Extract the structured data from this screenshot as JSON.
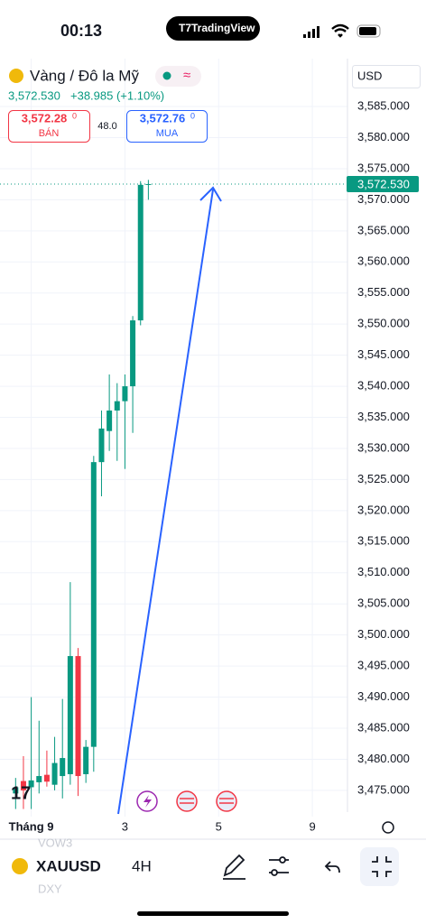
{
  "status_bar": {
    "time": "00:13",
    "brand": "TradingView"
  },
  "header": {
    "symbol_name": "Vàng / Đô la Mỹ",
    "price": "3,572.530",
    "change": "+38.985 (+1.10%)",
    "bid": "3,572.28",
    "bid_fraction": "0",
    "bid_label": "BÁN",
    "spread": "48.0",
    "ask": "3,572.76",
    "ask_fraction": "0",
    "ask_label": "MUA",
    "currency": "USD"
  },
  "toolbar": {
    "symbol": "XAUUSD",
    "interval": "4H",
    "previous_symbol": "VOW3",
    "next_symbol": "DXY"
  },
  "chart_data": {
    "type": "candlestick",
    "x": [
      0,
      1,
      2,
      3,
      4,
      5,
      6,
      7,
      8,
      9,
      10,
      11,
      12,
      13,
      14,
      15,
      16,
      17
    ],
    "open": [
      3474.5,
      3476.5,
      3475.5,
      3476.3,
      3477.5,
      3475.9,
      3477.3,
      3477.6,
      3496.6,
      3477.6,
      3482.0,
      3527.8,
      3532.8,
      3536.1,
      3537.6,
      3540.0,
      3550.6,
      3572.4
    ],
    "high": [
      3477.0,
      3480.5,
      3490.0,
      3486.2,
      3481.4,
      3483.6,
      3489.7,
      3508.5,
      3497.9,
      3483.1,
      3528.8,
      3536.1,
      3541.9,
      3540.5,
      3541.9,
      3551.3,
      3573.0,
      3573.2
    ],
    "low": [
      3472.0,
      3472.0,
      3472.0,
      3474.5,
      3475.6,
      3475.0,
      3473.7,
      3475.9,
      3474.1,
      3476.2,
      3478.0,
      3522.3,
      3529.6,
      3528.0,
      3526.7,
      3532.5,
      3549.8,
      3570.0
    ],
    "close": [
      3475.5,
      3475.0,
      3476.6,
      3477.3,
      3476.4,
      3479.4,
      3480.2,
      3496.6,
      3477.3,
      3482.0,
      3527.8,
      3533.2,
      3536.1,
      3537.6,
      3540.0,
      3550.6,
      3572.4,
      3572.53
    ],
    "up_color": "#089981",
    "down_color": "#f23645",
    "last_price": 3572.53,
    "last_price_label": "3,572.530",
    "xlim": [
      -2,
      42.5
    ],
    "xticks": [
      {
        "value": 2,
        "label": "Tháng 9"
      },
      {
        "value": 14,
        "label": "3"
      },
      {
        "value": 26,
        "label": "5"
      },
      {
        "value": 38,
        "label": "9"
      }
    ],
    "ylim": [
      3471.5,
      3592.7
    ],
    "yticks": [
      {
        "value": 3475,
        "label": "3,475.000"
      },
      {
        "value": 3480,
        "label": "3,480.000"
      },
      {
        "value": 3485,
        "label": "3,485.000"
      },
      {
        "value": 3490,
        "label": "3,490.000"
      },
      {
        "value": 3495,
        "label": "3,495.000"
      },
      {
        "value": 3500,
        "label": "3,500.000"
      },
      {
        "value": 3505,
        "label": "3,505.000"
      },
      {
        "value": 3510,
        "label": "3,510.000"
      },
      {
        "value": 3515,
        "label": "3,515.000"
      },
      {
        "value": 3520,
        "label": "3,520.000"
      },
      {
        "value": 3525,
        "label": "3,525.000"
      },
      {
        "value": 3530,
        "label": "3,530.000"
      },
      {
        "value": 3535,
        "label": "3,535.000"
      },
      {
        "value": 3540,
        "label": "3,540.000"
      },
      {
        "value": 3545,
        "label": "3,545.000"
      },
      {
        "value": 3550,
        "label": "3,550.000"
      },
      {
        "value": 3555,
        "label": "3,555.000"
      },
      {
        "value": 3560,
        "label": "3,560.000"
      },
      {
        "value": 3565,
        "label": "3,565.000"
      },
      {
        "value": 3570,
        "label": "3,570.000"
      },
      {
        "value": 3575,
        "label": "3,575.000"
      },
      {
        "value": 3580,
        "label": "3,580.000"
      },
      {
        "value": 3585,
        "label": "3,585.000"
      }
    ],
    "grid": true
  }
}
